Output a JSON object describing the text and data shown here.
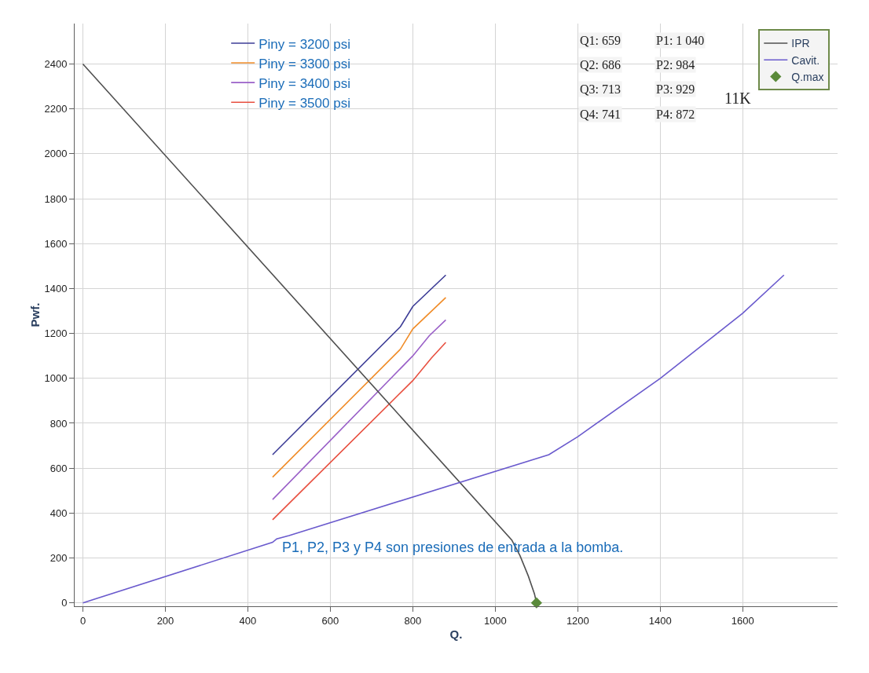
{
  "chart_data": {
    "type": "line",
    "xlabel": "Q.",
    "ylabel": "Pwf.",
    "xlim": [
      -20,
      1830
    ],
    "ylim": [
      -15,
      2580
    ],
    "xticks": [
      0,
      200,
      400,
      600,
      800,
      1000,
      1200,
      1400,
      1600
    ],
    "yticks": [
      0,
      200,
      400,
      600,
      800,
      1000,
      1200,
      1400,
      1600,
      1800,
      2000,
      2200,
      2400
    ],
    "grid": true,
    "legend": "top right",
    "marker": "none",
    "line_style": "solid",
    "series": [
      {
        "name": "Piny = 3200 psi",
        "color": "#3c3c96",
        "x": [
          460,
          770,
          800,
          880
        ],
        "values": [
          660,
          1230,
          1320,
          1460
        ]
      },
      {
        "name": "Piny = 3300 psi",
        "color": "#f08c28",
        "x": [
          460,
          770,
          800,
          880
        ],
        "values": [
          560,
          1130,
          1220,
          1360
        ]
      },
      {
        "name": "Piny = 3400 psi",
        "color": "#9a60c8",
        "x": [
          460,
          800,
          840,
          880
        ],
        "values": [
          460,
          1100,
          1190,
          1260
        ]
      },
      {
        "name": "Piny = 3500 psi",
        "color": "#e85040",
        "x": [
          460,
          800,
          845,
          880
        ],
        "values": [
          370,
          990,
          1090,
          1160
        ]
      },
      {
        "name": "IPR",
        "color": "#505050",
        "x": [
          0,
          1040,
          1060,
          1080,
          1095,
          1100
        ],
        "values": [
          2400,
          280,
          210,
          120,
          40,
          0
        ]
      },
      {
        "name": "Cavit.",
        "color": "#6a5acd",
        "x": [
          0,
          460,
          470,
          500,
          1130,
          1200,
          1400,
          1600,
          1700
        ],
        "values": [
          0,
          270,
          285,
          300,
          660,
          740,
          1000,
          1290,
          1460
        ]
      },
      {
        "name": "Q.max",
        "type": "scatter",
        "marker": "diamond",
        "color": "#5a8a3a",
        "x": [
          1100
        ],
        "values": [
          0
        ]
      }
    ],
    "annotations": [
      "Q1: 659",
      "P1: 1 040",
      "Q2: 686",
      "P2: 984",
      "Q3: 713",
      "P3: 929",
      "Q4: 741",
      "P4: 872",
      "11K",
      "P1, P2, P3 y P4 son presiones de entrada a la bomba."
    ]
  }
}
